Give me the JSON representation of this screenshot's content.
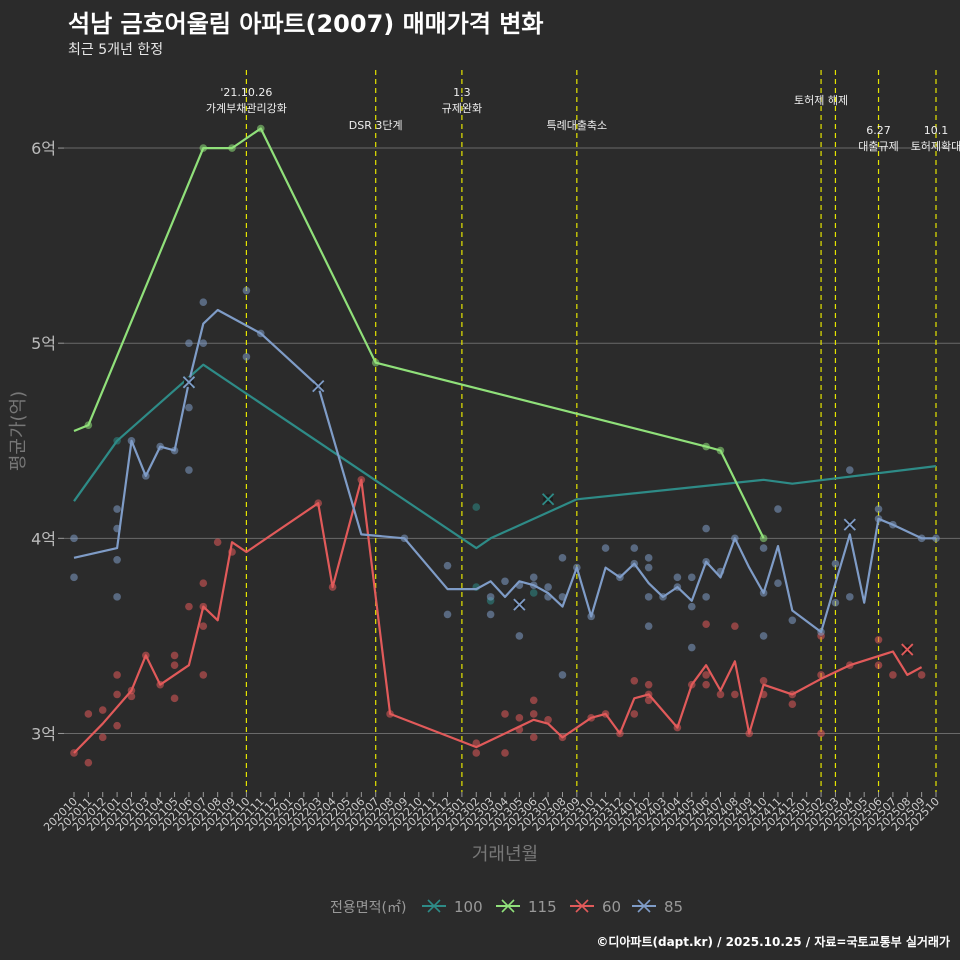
{
  "title": "석남 금호어울림 아파트(2007) 매매가격 변화",
  "subtitle": "최근 5개년 한정",
  "caption": "©디아파트(dapt.kr) / 2025.10.25 / 자료=국토교통부 실거래가",
  "colors": {
    "background": "#2b2b2b",
    "grid": "#6a6a6a",
    "vline": "#e5e500",
    "s100": "#2e8b87",
    "s115": "#90e07a",
    "s60": "#e15a5a",
    "s85": "#7f9cc7"
  },
  "chart_data": {
    "type": "line",
    "xlabel": "거래년월",
    "ylabel": "평균가(억)",
    "ylim": [
      2.7,
      6.4
    ],
    "yticks": [
      3,
      4,
      5,
      6
    ],
    "ytick_labels": [
      "3억",
      "4억",
      "5억",
      "6억"
    ],
    "categories": [
      "202010",
      "202011",
      "202012",
      "202101",
      "202102",
      "202103",
      "202104",
      "202105",
      "202106",
      "202107",
      "202108",
      "202109",
      "202110",
      "202111",
      "202112",
      "202201",
      "202202",
      "202203",
      "202204",
      "202205",
      "202206",
      "202207",
      "202208",
      "202209",
      "202210",
      "202211",
      "202212",
      "202301",
      "202302",
      "202303",
      "202304",
      "202305",
      "202306",
      "202307",
      "202308",
      "202309",
      "202310",
      "202311",
      "202312",
      "202401",
      "202402",
      "202403",
      "202404",
      "202405",
      "202406",
      "202407",
      "202408",
      "202409",
      "202410",
      "202411",
      "202412",
      "202501",
      "202502",
      "202503",
      "202504",
      "202505",
      "202506",
      "202507",
      "202508",
      "202509",
      "202510"
    ],
    "legend_title": "전용면적(㎡)",
    "legend_position": "bottom",
    "series": [
      {
        "name": "100",
        "color": "#2e8b87",
        "line": [
          [
            "202010",
            4.19
          ],
          [
            "202101",
            4.5
          ],
          [
            "202107",
            4.89
          ],
          [
            "202302",
            3.95
          ],
          [
            "202303",
            4.0
          ],
          [
            "202309",
            4.2
          ],
          [
            "202410",
            4.3
          ],
          [
            "202412",
            4.28
          ],
          [
            "202510",
            4.37
          ]
        ],
        "crosses": [
          [
            "202106",
            4.8
          ],
          [
            "202307",
            4.2
          ]
        ]
      },
      {
        "name": "115",
        "color": "#90e07a",
        "line": [
          [
            "202010",
            4.55
          ],
          [
            "202011",
            4.58
          ],
          [
            "202107",
            6.0
          ],
          [
            "202109",
            6.0
          ],
          [
            "202111",
            6.1
          ],
          [
            "202207",
            4.9
          ],
          [
            "202406",
            4.47
          ],
          [
            "202407",
            4.45
          ],
          [
            "202410",
            4.0
          ]
        ],
        "crosses": []
      },
      {
        "name": "60",
        "color": "#e15a5a",
        "line": [
          [
            "202010",
            2.9
          ],
          [
            "202012",
            3.05
          ],
          [
            "202102",
            3.22
          ],
          [
            "202103",
            3.4
          ],
          [
            "202104",
            3.25
          ],
          [
            "202106",
            3.35
          ],
          [
            "202107",
            3.65
          ],
          [
            "202108",
            3.58
          ],
          [
            "202109",
            3.98
          ],
          [
            "202110",
            3.93
          ],
          [
            "202203",
            4.18
          ],
          [
            "202204",
            3.75
          ],
          [
            "202206",
            4.3
          ],
          [
            "202208",
            3.1
          ],
          [
            "202302",
            2.93
          ],
          [
            "202306",
            3.07
          ],
          [
            "202307",
            3.05
          ],
          [
            "202308",
            2.98
          ],
          [
            "202310",
            3.08
          ],
          [
            "202311",
            3.1
          ],
          [
            "202312",
            3.0
          ],
          [
            "202401",
            3.18
          ],
          [
            "202402",
            3.2
          ],
          [
            "202404",
            3.03
          ],
          [
            "202405",
            3.25
          ],
          [
            "202406",
            3.35
          ],
          [
            "202407",
            3.22
          ],
          [
            "202408",
            3.37
          ],
          [
            "202409",
            3.0
          ],
          [
            "202410",
            3.25
          ],
          [
            "202412",
            3.2
          ],
          [
            "202502",
            3.28
          ],
          [
            "202504",
            3.35
          ],
          [
            "202507",
            3.42
          ],
          [
            "202508",
            3.3
          ],
          [
            "202509",
            3.34
          ]
        ],
        "crosses": [
          [
            "202508",
            3.43
          ]
        ]
      },
      {
        "name": "85",
        "color": "#7f9cc7",
        "line": [
          [
            "202010",
            3.9
          ],
          [
            "202101",
            3.95
          ],
          [
            "202102",
            4.5
          ],
          [
            "202103",
            4.32
          ],
          [
            "202104",
            4.47
          ],
          [
            "202105",
            4.45
          ],
          [
            "202106",
            4.8
          ],
          [
            "202107",
            5.1
          ],
          [
            "202108",
            5.17
          ],
          [
            "202111",
            5.05
          ],
          [
            "202203",
            4.78
          ],
          [
            "202206",
            4.02
          ],
          [
            "202209",
            4.0
          ],
          [
            "202212",
            3.74
          ],
          [
            "202302",
            3.74
          ],
          [
            "202303",
            3.78
          ],
          [
            "202304",
            3.7
          ],
          [
            "202305",
            3.78
          ],
          [
            "202306",
            3.76
          ],
          [
            "202307",
            3.72
          ],
          [
            "202308",
            3.65
          ],
          [
            "202309",
            3.85
          ],
          [
            "202310",
            3.6
          ],
          [
            "202311",
            3.85
          ],
          [
            "202312",
            3.8
          ],
          [
            "202401",
            3.87
          ],
          [
            "202402",
            3.77
          ],
          [
            "202403",
            3.7
          ],
          [
            "202404",
            3.75
          ],
          [
            "202405",
            3.68
          ],
          [
            "202406",
            3.88
          ],
          [
            "202407",
            3.8
          ],
          [
            "202408",
            4.0
          ],
          [
            "202409",
            3.85
          ],
          [
            "202410",
            3.72
          ],
          [
            "202411",
            3.96
          ],
          [
            "202412",
            3.63
          ],
          [
            "202502",
            3.52
          ],
          [
            "202504",
            4.02
          ],
          [
            "202505",
            3.67
          ],
          [
            "202506",
            4.1
          ],
          [
            "202507",
            4.07
          ],
          [
            "202509",
            4.0
          ],
          [
            "202510",
            4.0
          ]
        ],
        "crosses": [
          [
            "202106",
            4.8
          ],
          [
            "202203",
            4.78
          ],
          [
            "202305",
            3.66
          ],
          [
            "202504",
            4.07
          ]
        ]
      }
    ],
    "scatter": [
      {
        "series": "100",
        "points": [
          [
            "202101",
            4.5
          ],
          [
            "202302",
            4.16
          ],
          [
            "202302",
            3.75
          ],
          [
            "202303",
            3.68
          ],
          [
            "202306",
            3.72
          ]
        ]
      },
      {
        "series": "115",
        "points": [
          [
            "202011",
            4.58
          ],
          [
            "202107",
            6.0
          ],
          [
            "202109",
            6.0
          ],
          [
            "202111",
            6.1
          ],
          [
            "202207",
            4.9
          ],
          [
            "202406",
            4.47
          ],
          [
            "202407",
            4.45
          ],
          [
            "202410",
            4.0
          ]
        ]
      },
      {
        "series": "60",
        "points": [
          [
            "202010",
            2.9
          ],
          [
            "202011",
            3.1
          ],
          [
            "202011",
            2.85
          ],
          [
            "202012",
            2.98
          ],
          [
            "202012",
            3.12
          ],
          [
            "202101",
            3.2
          ],
          [
            "202101",
            3.3
          ],
          [
            "202101",
            3.04
          ],
          [
            "202102",
            3.22
          ],
          [
            "202102",
            3.19
          ],
          [
            "202103",
            3.4
          ],
          [
            "202104",
            3.25
          ],
          [
            "202105",
            3.4
          ],
          [
            "202105",
            3.35
          ],
          [
            "202105",
            3.18
          ],
          [
            "202106",
            3.65
          ],
          [
            "202107",
            3.77
          ],
          [
            "202107",
            3.65
          ],
          [
            "202107",
            3.55
          ],
          [
            "202107",
            3.3
          ],
          [
            "202108",
            3.98
          ],
          [
            "202109",
            3.93
          ],
          [
            "202203",
            4.18
          ],
          [
            "202204",
            3.75
          ],
          [
            "202206",
            4.3
          ],
          [
            "202208",
            3.1
          ],
          [
            "202302",
            2.95
          ],
          [
            "202302",
            2.9
          ],
          [
            "202305",
            3.08
          ],
          [
            "202305",
            3.02
          ],
          [
            "202306",
            3.17
          ],
          [
            "202306",
            2.98
          ],
          [
            "202306",
            3.1
          ],
          [
            "202304",
            2.9
          ],
          [
            "202304",
            3.1
          ],
          [
            "202307",
            3.07
          ],
          [
            "202308",
            2.98
          ],
          [
            "202310",
            3.08
          ],
          [
            "202311",
            3.1
          ],
          [
            "202312",
            3.0
          ],
          [
            "202401",
            3.27
          ],
          [
            "202401",
            3.1
          ],
          [
            "202402",
            3.17
          ],
          [
            "202402",
            3.2
          ],
          [
            "202402",
            3.25
          ],
          [
            "202404",
            3.03
          ],
          [
            "202405",
            3.25
          ],
          [
            "202406",
            3.56
          ],
          [
            "202406",
            3.3
          ],
          [
            "202406",
            3.25
          ],
          [
            "202407",
            3.2
          ],
          [
            "202408",
            3.55
          ],
          [
            "202408",
            3.2
          ],
          [
            "202409",
            3.0
          ],
          [
            "202410",
            3.27
          ],
          [
            "202410",
            3.2
          ],
          [
            "202412",
            3.15
          ],
          [
            "202412",
            3.2
          ],
          [
            "202502",
            3.5
          ],
          [
            "202502",
            3.3
          ],
          [
            "202502",
            3.0
          ],
          [
            "202504",
            3.35
          ],
          [
            "202507",
            3.3
          ],
          [
            "202506",
            3.48
          ],
          [
            "202506",
            3.35
          ],
          [
            "202509",
            3.3
          ]
        ]
      },
      {
        "series": "85",
        "points": [
          [
            "202010",
            4.0
          ],
          [
            "202010",
            3.8
          ],
          [
            "202101",
            4.15
          ],
          [
            "202101",
            4.05
          ],
          [
            "202101",
            3.89
          ],
          [
            "202101",
            3.7
          ],
          [
            "202102",
            4.5
          ],
          [
            "202103",
            4.32
          ],
          [
            "202104",
            4.47
          ],
          [
            "202105",
            4.45
          ],
          [
            "202106",
            4.35
          ],
          [
            "202106",
            4.67
          ],
          [
            "202106",
            5.0
          ],
          [
            "202107",
            5.21
          ],
          [
            "202107",
            5.0
          ],
          [
            "202110",
            5.27
          ],
          [
            "202110",
            4.93
          ],
          [
            "202111",
            5.05
          ],
          [
            "202209",
            4.0
          ],
          [
            "202212",
            3.86
          ],
          [
            "202212",
            3.61
          ],
          [
            "202303",
            3.7
          ],
          [
            "202303",
            3.61
          ],
          [
            "202304",
            3.78
          ],
          [
            "202305",
            3.76
          ],
          [
            "202305",
            3.5
          ],
          [
            "202306",
            3.8
          ],
          [
            "202306",
            3.76
          ],
          [
            "202307",
            3.75
          ],
          [
            "202307",
            3.7
          ],
          [
            "202308",
            3.9
          ],
          [
            "202308",
            3.7
          ],
          [
            "202308",
            3.3
          ],
          [
            "202309",
            3.85
          ],
          [
            "202310",
            3.6
          ],
          [
            "202311",
            3.95
          ],
          [
            "202312",
            3.8
          ],
          [
            "202401",
            3.95
          ],
          [
            "202401",
            3.87
          ],
          [
            "202402",
            3.9
          ],
          [
            "202402",
            3.85
          ],
          [
            "202402",
            3.7
          ],
          [
            "202402",
            3.55
          ],
          [
            "202403",
            3.7
          ],
          [
            "202404",
            3.8
          ],
          [
            "202404",
            3.75
          ],
          [
            "202405",
            3.8
          ],
          [
            "202405",
            3.65
          ],
          [
            "202405",
            3.44
          ],
          [
            "202406",
            4.05
          ],
          [
            "202406",
            3.88
          ],
          [
            "202406",
            3.7
          ],
          [
            "202407",
            3.83
          ],
          [
            "202408",
            4.0
          ],
          [
            "202410",
            3.95
          ],
          [
            "202410",
            3.72
          ],
          [
            "202410",
            3.5
          ],
          [
            "202411",
            3.77
          ],
          [
            "202411",
            4.15
          ],
          [
            "202412",
            3.58
          ],
          [
            "202502",
            3.52
          ],
          [
            "202503",
            3.67
          ],
          [
            "202503",
            3.87
          ],
          [
            "202504",
            4.35
          ],
          [
            "202504",
            3.7
          ],
          [
            "202506",
            4.15
          ],
          [
            "202506",
            4.1
          ],
          [
            "202507",
            4.07
          ],
          [
            "202509",
            4.0
          ],
          [
            "202510",
            4.0
          ]
        ]
      }
    ],
    "events": [
      {
        "month": "202110",
        "lines": [
          "'21.10.26",
          "가계부채관리강화"
        ],
        "row": 0
      },
      {
        "month": "202207",
        "lines": [
          "DSR 3단계"
        ],
        "row": 2
      },
      {
        "month": "202301",
        "lines": [
          "1.3",
          "규제완화"
        ],
        "row": 0
      },
      {
        "month": "202309",
        "lines": [
          "특례대출축소"
        ],
        "row": 2
      },
      {
        "month": "202502",
        "lines": [
          "토허제 해제"
        ],
        "row": 1
      },
      {
        "month": "202503",
        "lines": [],
        "row": 0
      },
      {
        "month": "202506",
        "lines": [
          "6.27",
          "대출규제"
        ],
        "row": 3
      },
      {
        "month": "202510",
        "lines": [
          "10.1",
          "토허제확대"
        ],
        "row": 3
      }
    ]
  }
}
